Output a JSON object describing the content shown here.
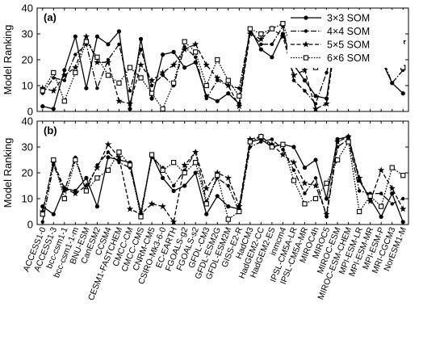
{
  "chart_data": [
    {
      "panel_label": "(a)",
      "type": "line",
      "ylabel": "Model Ranking",
      "ylim": [
        0,
        40
      ],
      "yticks": [
        0,
        10,
        20,
        30,
        40
      ],
      "grid": false,
      "legend": "top-right",
      "categories": [
        "ACCESS1-0",
        "ACCESS1-3",
        "bcc-csm1-1",
        "bcc-csm1-1-m",
        "BNU-ESM",
        "CanESM2",
        "CCSM4",
        "CESM1-FASTCHEM",
        "CMCC-CM",
        "CMCC-CMS",
        "CNRM-CM5",
        "CSIRO-Mk3-6-0",
        "EC-EARTH",
        "FGOALS-g2",
        "FGOALS-s2",
        "GFDL-CM3",
        "GFDL-ESM2G",
        "GFDL-ESM2M",
        "GISS-E2-R",
        "HadCM3",
        "HadGEM2-CC",
        "HadGEM2-ES",
        "inmcm4",
        "IPSL-CM5A-LR",
        "IPSL-CM5A-MR",
        "MIROC4h",
        "MIROC5",
        "MIROC-ESM",
        "MIROC-ESM-CHEM",
        "MPI-ESM-LR",
        "MPI-ESM-MR",
        "MPI-ESM-P",
        "MRI-CGCM3",
        "NorESM1-M"
      ],
      "series": [
        {
          "name": "3×3 SOM",
          "style": "solid",
          "marker": "circle",
          "values": [
            2,
            1,
            16,
            29,
            9,
            29,
            26,
            31,
            1,
            28,
            5,
            22,
            23,
            17,
            19,
            6,
            4,
            7,
            3,
            32,
            24,
            21,
            30,
            18,
            12,
            6,
            5,
            34,
            33,
            25,
            18,
            20,
            11,
            7
          ]
        },
        {
          "name": "4×4 SOM",
          "style": "dashdot",
          "marker": "dot",
          "values": [
            7,
            13,
            12,
            22,
            26,
            9,
            20,
            26,
            8,
            24,
            10,
            14,
            10,
            25,
            21,
            5,
            12,
            10,
            9,
            31,
            26,
            26,
            33,
            12,
            8,
            3,
            15,
            32,
            33,
            29,
            24,
            22,
            11,
            16
          ]
        },
        {
          "name": "5×5 SOM",
          "style": "dashed",
          "marker": "star",
          "values": [
            9,
            8,
            14,
            17,
            29,
            19,
            19,
            4,
            3,
            18,
            12,
            15,
            18,
            24,
            26,
            18,
            13,
            10,
            2,
            30,
            28,
            32,
            29,
            14,
            16,
            1,
            3,
            33,
            34,
            27,
            23,
            25,
            21,
            27
          ]
        },
        {
          "name": "6×6 SOM",
          "style": "dotted",
          "marker": "square",
          "values": [
            8,
            15,
            4,
            15,
            27,
            21,
            14,
            11,
            17,
            13,
            7,
            1,
            11,
            27,
            23,
            10,
            20,
            12,
            6,
            32,
            30,
            32,
            34,
            22,
            24,
            17,
            18,
            31,
            32,
            26,
            28,
            27,
            20,
            17
          ]
        }
      ]
    },
    {
      "panel_label": "(b)",
      "type": "line",
      "ylabel": "Model Ranking",
      "ylim": [
        0,
        40
      ],
      "yticks": [
        0,
        10,
        20,
        30,
        40
      ],
      "grid": false,
      "categories": [
        "ACCESS1-0",
        "ACCESS1-3",
        "bcc-csm1-1",
        "bcc-csm1-1-m",
        "BNU-ESM",
        "CanESM2",
        "CCSM4",
        "CESM1-FASTCHEM",
        "CMCC-CM",
        "CMCC-CMS",
        "CNRM-CM5",
        "CSIRO-Mk3-6-0",
        "EC-EARTH",
        "FGOALS-g2",
        "FGOALS-s2",
        "GFDL-CM3",
        "GFDL-ESM2G",
        "GFDL-ESM2M",
        "GISS-E2-R",
        "HadCM3",
        "HadGEM2-CC",
        "HadGEM2-ES",
        "inmcm4",
        "IPSL-CM5A-LR",
        "IPSL-CM5A-MR",
        "MIROC4h",
        "MIROC5",
        "MIROC-ESM",
        "MIROC-ESM-CHEM",
        "MPI-ESM-LR",
        "MPI-ESM-MR",
        "MPI-ESM-P",
        "MRI-CGCM3",
        "NorESM1-M"
      ],
      "series": [
        {
          "name": "3×3 SOM",
          "style": "solid",
          "marker": "circle",
          "values": [
            7,
            4,
            14,
            13,
            18,
            7,
            26,
            25,
            24,
            4,
            27,
            18,
            13,
            15,
            20,
            4,
            11,
            7,
            6,
            32,
            33,
            30,
            31,
            30,
            22,
            25,
            10,
            33,
            34,
            17,
            10,
            3,
            12,
            1
          ]
        },
        {
          "name": "4×4 SOM",
          "style": "dashdot",
          "marker": "dot",
          "values": [
            1,
            23,
            13,
            26,
            13,
            23,
            28,
            24,
            22,
            5,
            26,
            22,
            15,
            21,
            28,
            9,
            18,
            15,
            5,
            30,
            32,
            33,
            29,
            21,
            12,
            18,
            3,
            30,
            33,
            13,
            12,
            12,
            8,
            10
          ]
        },
        {
          "name": "5×5 SOM",
          "style": "dashed",
          "marker": "star",
          "values": [
            5,
            24,
            14,
            12,
            15,
            22,
            31,
            26,
            6,
            4,
            8,
            7,
            1,
            23,
            28,
            14,
            20,
            18,
            7,
            33,
            34,
            31,
            27,
            24,
            16,
            15,
            4,
            32,
            34,
            18,
            9,
            21,
            14,
            6
          ]
        },
        {
          "name": "6×6 SOM",
          "style": "dotted",
          "marker": "square",
          "values": [
            4,
            25,
            10,
            25,
            13,
            18,
            21,
            28,
            23,
            3,
            27,
            21,
            24,
            20,
            24,
            8,
            19,
            2,
            5,
            32,
            34,
            30,
            31,
            17,
            8,
            10,
            16,
            25,
            32,
            5,
            11,
            7,
            22,
            19
          ]
        }
      ]
    }
  ]
}
